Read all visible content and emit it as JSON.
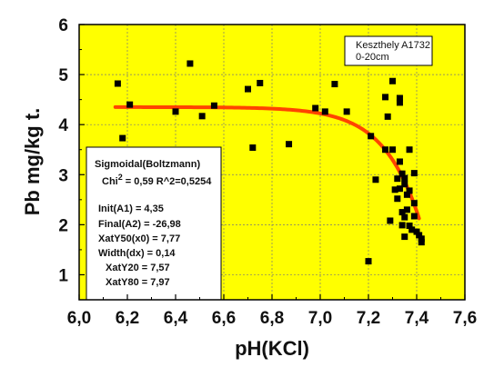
{
  "chart_data": {
    "type": "scatter",
    "xlabel": "pH(KCl)",
    "ylabel": "Pb mg/kg t.",
    "xlim": [
      6.0,
      7.6
    ],
    "ylim": [
      0.5,
      6.0
    ],
    "x_ticks": [
      "6,0",
      "6,2",
      "6,4",
      "6,6",
      "6,8",
      "7,0",
      "7,2",
      "7,4",
      "7,6"
    ],
    "y_ticks": [
      "1",
      "2",
      "3",
      "4",
      "5",
      "6"
    ],
    "grid": true,
    "colors": {
      "plot_background": "#ffff00",
      "grid": "#777777",
      "points": "#000000",
      "fit_line": "#ff4400"
    },
    "legend_lines": [
      "Keszthely A1732",
      "0-20cm"
    ],
    "fit_box": {
      "title": "Sigmoidal(Boltzmann)",
      "chi_prefix": "Chi",
      "chi_exp": "2",
      "chi_rest": " = 0,59  R^2=0,5254",
      "params": [
        "Init(A1)  = 4,35",
        "Final(A2)  = -26,98",
        "XatY50(x0) = 7,77",
        "Width(dx) = 0,14",
        "XatY20 = 7,57",
        "XatY80 = 7,97"
      ]
    },
    "fit": {
      "A1": 4.35,
      "A2": -26.98,
      "x0": 7.77,
      "dx": 0.14,
      "x_from": 6.15,
      "x_to": 7.41
    },
    "points": [
      [
        6.16,
        4.82
      ],
      [
        6.18,
        3.73
      ],
      [
        6.21,
        4.4
      ],
      [
        6.4,
        4.26
      ],
      [
        6.46,
        5.22
      ],
      [
        6.51,
        4.17
      ],
      [
        6.56,
        4.38
      ],
      [
        6.7,
        4.71
      ],
      [
        6.72,
        3.54
      ],
      [
        6.75,
        4.83
      ],
      [
        6.87,
        3.61
      ],
      [
        6.98,
        4.33
      ],
      [
        7.02,
        4.26
      ],
      [
        7.06,
        4.81
      ],
      [
        7.11,
        4.26
      ],
      [
        7.2,
        1.27
      ],
      [
        7.21,
        3.77
      ],
      [
        7.23,
        2.9
      ],
      [
        7.27,
        4.55
      ],
      [
        7.27,
        3.5
      ],
      [
        7.28,
        4.16
      ],
      [
        7.29,
        2.08
      ],
      [
        7.3,
        4.87
      ],
      [
        7.3,
        3.5
      ],
      [
        7.31,
        2.7
      ],
      [
        7.32,
        2.92
      ],
      [
        7.32,
        2.52
      ],
      [
        7.33,
        4.53
      ],
      [
        7.33,
        4.44
      ],
      [
        7.33,
        3.26
      ],
      [
        7.33,
        2.72
      ],
      [
        7.34,
        3.02
      ],
      [
        7.34,
        2.25
      ],
      [
        7.34,
        1.99
      ],
      [
        7.35,
        2.93
      ],
      [
        7.35,
        2.81
      ],
      [
        7.35,
        2.15
      ],
      [
        7.35,
        1.76
      ],
      [
        7.36,
        2.6
      ],
      [
        7.36,
        2.3
      ],
      [
        7.37,
        3.5
      ],
      [
        7.37,
        2.68
      ],
      [
        7.37,
        1.98
      ],
      [
        7.38,
        1.9
      ],
      [
        7.39,
        3.03
      ],
      [
        7.39,
        2.43
      ],
      [
        7.39,
        2.17
      ],
      [
        7.4,
        1.86
      ],
      [
        7.41,
        1.79
      ],
      [
        7.42,
        1.72
      ],
      [
        7.42,
        1.65
      ]
    ]
  }
}
